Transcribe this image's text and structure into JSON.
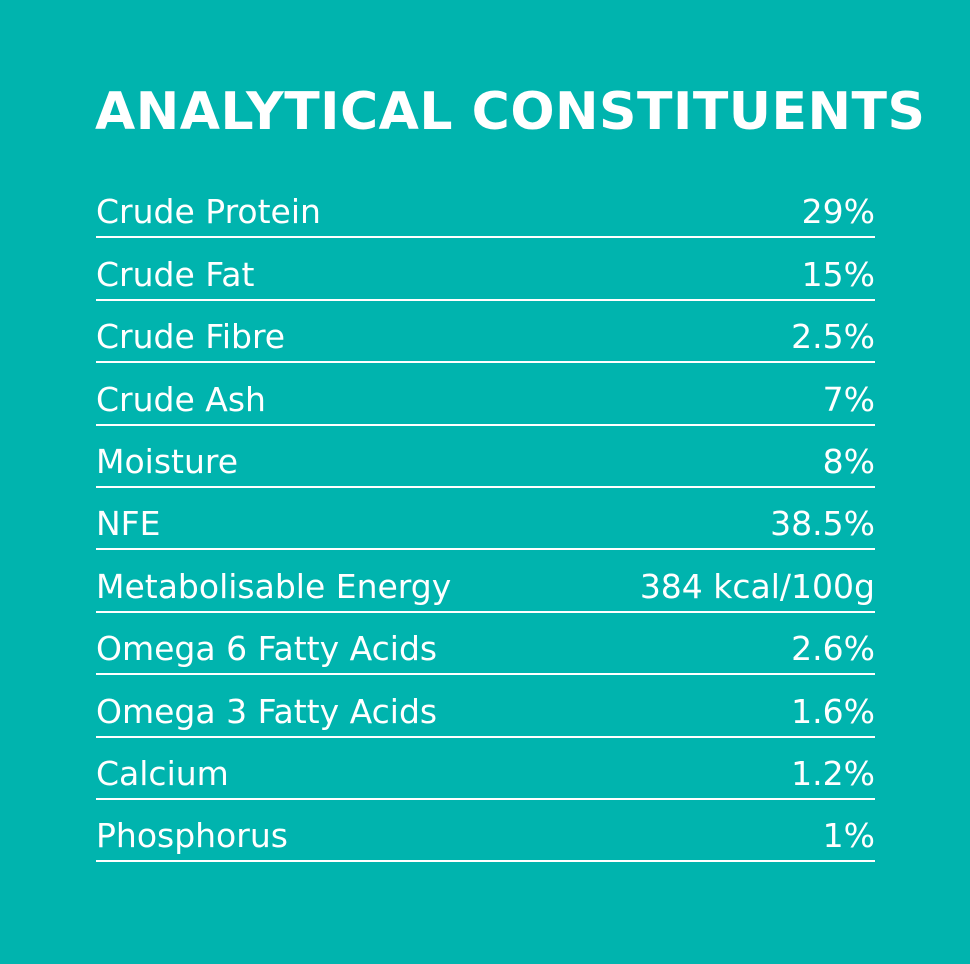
{
  "title": "ANALYTICAL CONSTITUENTS",
  "rows": [
    {
      "label": "Crude Protein",
      "value": "29%"
    },
    {
      "label": "Crude Fat",
      "value": "15%"
    },
    {
      "label": "Crude Fibre",
      "value": "2.5%"
    },
    {
      "label": "Crude Ash",
      "value": "7%"
    },
    {
      "label": "Moisture",
      "value": "8%"
    },
    {
      "label": "NFE",
      "value": "38.5%"
    },
    {
      "label": "Metabolisable Energy",
      "value": "384 kcal/100g"
    },
    {
      "label": "Omega 6 Fatty Acids",
      "value": "2.6%"
    },
    {
      "label": "Omega 3 Fatty Acids",
      "value": "1.6%"
    },
    {
      "label": "Calcium",
      "value": "1.2%"
    },
    {
      "label": "Phosphorus",
      "value": "1%"
    }
  ],
  "colors": {
    "background": "#00b4ae",
    "text": "#ffffff"
  }
}
